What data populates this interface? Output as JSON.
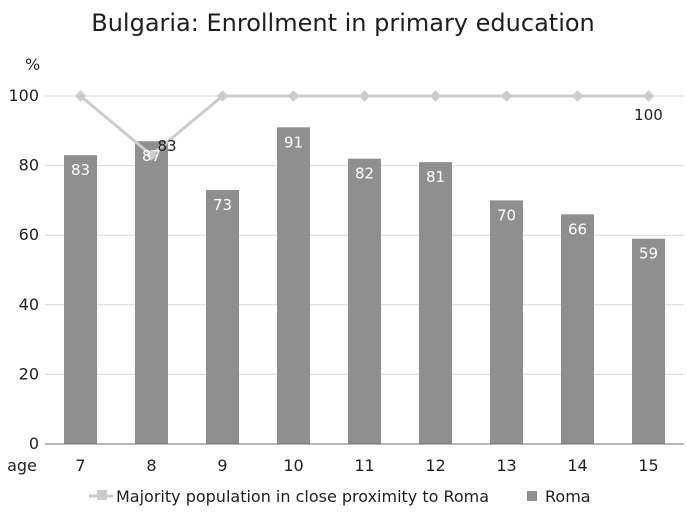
{
  "chart_data": {
    "type": "bar",
    "title": "Bulgaria: Enrollment in primary education",
    "xlabel": "age",
    "ylabel": "%",
    "ylim": [
      0,
      100
    ],
    "yticks": [
      0,
      20,
      40,
      60,
      80,
      100
    ],
    "grid": true,
    "legend_position": "bottom",
    "categories": [
      "7",
      "8",
      "9",
      "10",
      "11",
      "12",
      "13",
      "14",
      "15"
    ],
    "series": [
      {
        "name": "Majority population in close proximity to Roma",
        "type": "line",
        "values": [
          100,
          83,
          100,
          100,
          100,
          100,
          100,
          100,
          100
        ],
        "labels": [
          "",
          "83",
          "",
          "",
          "",
          "",
          "",
          "",
          "100"
        ],
        "color": "#cccccc"
      },
      {
        "name": "Roma",
        "type": "bar",
        "values": [
          83,
          87,
          73,
          91,
          82,
          81,
          70,
          66,
          59
        ],
        "labels": [
          "83",
          "87",
          "73",
          "91",
          "82",
          "81",
          "70",
          "66",
          "59"
        ],
        "color": "#8f8f8f"
      }
    ]
  }
}
